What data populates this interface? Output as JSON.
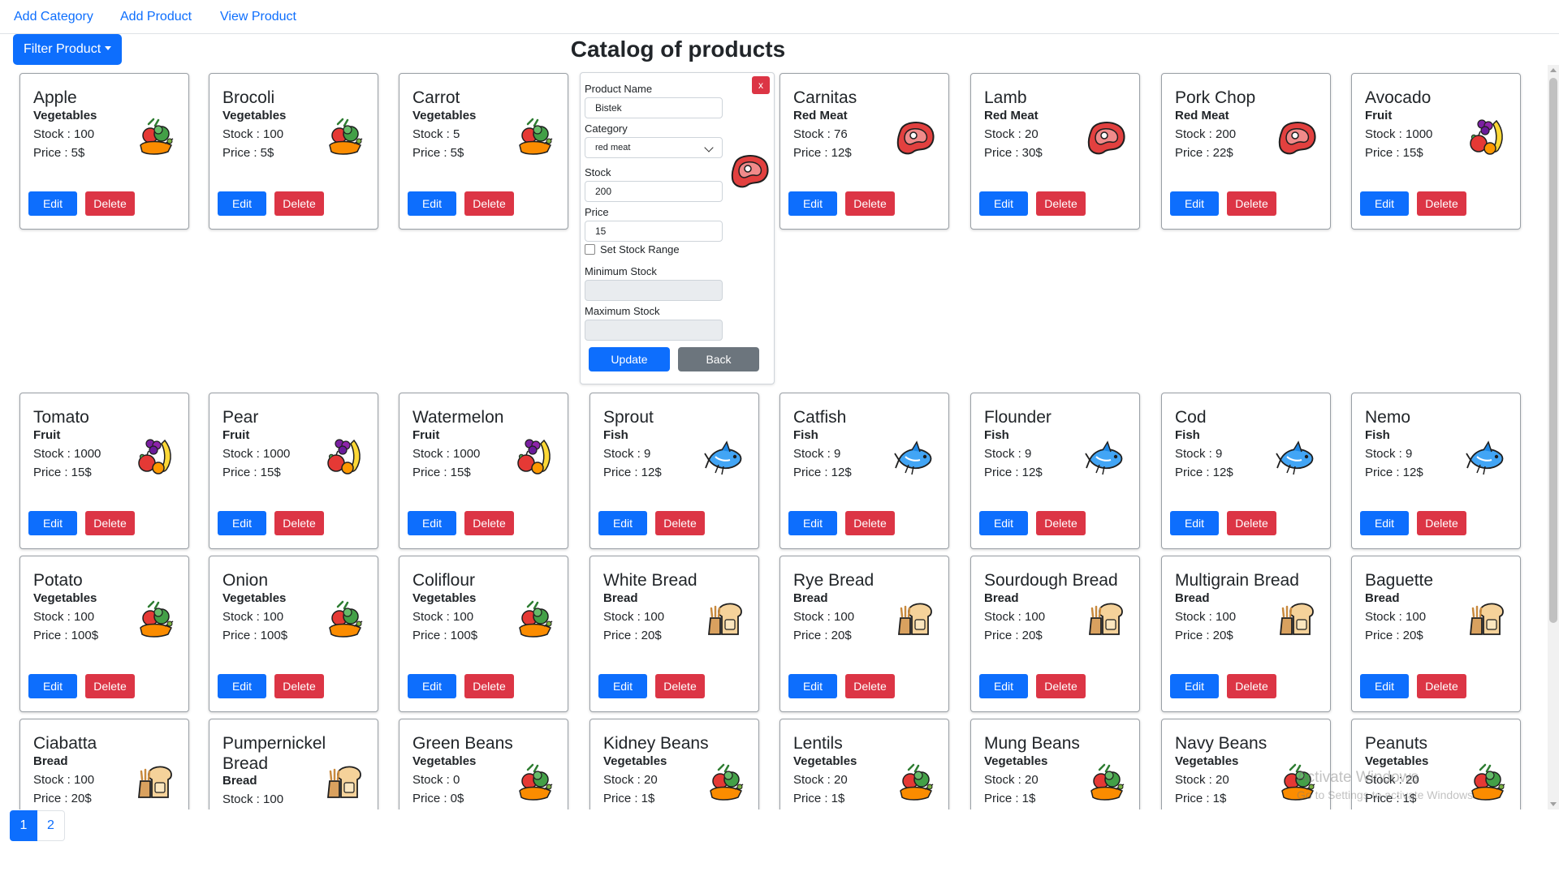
{
  "nav": {
    "links": [
      "Add Category",
      "Add Product",
      "View Product"
    ]
  },
  "filter_button": "Filter Product",
  "page_title": "Catalog of products",
  "form": {
    "close": "x",
    "product_name_label": "Product Name",
    "product_name_value": "Bistek",
    "category_label": "Category",
    "category_value": "red meat",
    "stock_label": "Stock",
    "stock_value": "200",
    "price_label": "Price",
    "price_value": "15",
    "stock_range_label": "Set Stock Range",
    "min_stock_label": "Minimum Stock",
    "max_stock_label": "Maximum Stock",
    "update_button": "Update",
    "back_button": "Back"
  },
  "card_buttons": {
    "edit": "Edit",
    "delete": "Delete"
  },
  "products": [
    {
      "name": "Apple",
      "category": "Vegetables",
      "stock": "Stock : 100",
      "price": "Price : 5$",
      "icon": "vegetables-icon"
    },
    {
      "name": "Brocoli",
      "category": "Vegetables",
      "stock": "Stock : 100",
      "price": "Price : 5$",
      "icon": "vegetables-icon"
    },
    {
      "name": "Carrot",
      "category": "Vegetables",
      "stock": "Stock : 5",
      "price": "Price : 5$",
      "icon": "vegetables-icon"
    },
    {
      "name": "Carnitas",
      "category": "Red Meat",
      "stock": "Stock : 76",
      "price": "Price : 12$",
      "icon": "steak-icon"
    },
    {
      "name": "Lamb",
      "category": "Red Meat",
      "stock": "Stock : 20",
      "price": "Price : 30$",
      "icon": "steak-icon"
    },
    {
      "name": "Pork Chop",
      "category": "Red Meat",
      "stock": "Stock : 200",
      "price": "Price : 22$",
      "icon": "steak-icon"
    },
    {
      "name": "Avocado",
      "category": "Fruit",
      "stock": "Stock : 1000",
      "price": "Price : 15$",
      "icon": "fruit-icon"
    },
    {
      "name": "Tomato",
      "category": "Fruit",
      "stock": "Stock : 1000",
      "price": "Price : 15$",
      "icon": "fruit-icon"
    },
    {
      "name": "Pear",
      "category": "Fruit",
      "stock": "Stock : 1000",
      "price": "Price : 15$",
      "icon": "fruit-icon"
    },
    {
      "name": "Watermelon",
      "category": "Fruit",
      "stock": "Stock : 1000",
      "price": "Price : 15$",
      "icon": "fruit-icon"
    },
    {
      "name": "Sprout",
      "category": "Fish",
      "stock": "Stock : 9",
      "price": "Price : 12$",
      "icon": "fish-icon"
    },
    {
      "name": "Catfish",
      "category": "Fish",
      "stock": "Stock : 9",
      "price": "Price : 12$",
      "icon": "fish-icon"
    },
    {
      "name": "Flounder",
      "category": "Fish",
      "stock": "Stock : 9",
      "price": "Price : 12$",
      "icon": "fish-icon"
    },
    {
      "name": "Cod",
      "category": "Fish",
      "stock": "Stock : 9",
      "price": "Price : 12$",
      "icon": "fish-icon"
    },
    {
      "name": "Nemo",
      "category": "Fish",
      "stock": "Stock : 9",
      "price": "Price : 12$",
      "icon": "fish-icon"
    },
    {
      "name": "Potato",
      "category": "Vegetables",
      "stock": "Stock : 100",
      "price": "Price : 100$",
      "icon": "vegetables-icon"
    },
    {
      "name": "Onion",
      "category": "Vegetables",
      "stock": "Stock : 100",
      "price": "Price : 100$",
      "icon": "vegetables-icon"
    },
    {
      "name": "Coliflour",
      "category": "Vegetables",
      "stock": "Stock : 100",
      "price": "Price : 100$",
      "icon": "vegetables-icon"
    },
    {
      "name": "White Bread",
      "category": "Bread",
      "stock": "Stock : 100",
      "price": "Price : 20$",
      "icon": "bread-icon"
    },
    {
      "name": "Rye Bread",
      "category": "Bread",
      "stock": "Stock : 100",
      "price": "Price : 20$",
      "icon": "bread-icon"
    },
    {
      "name": "Sourdough Bread",
      "category": "Bread",
      "stock": "Stock : 100",
      "price": "Price : 20$",
      "icon": "bread-icon"
    },
    {
      "name": "Multigrain Bread",
      "category": "Bread",
      "stock": "Stock : 100",
      "price": "Price : 20$",
      "icon": "bread-icon"
    },
    {
      "name": "Baguette",
      "category": "Bread",
      "stock": "Stock : 100",
      "price": "Price : 20$",
      "icon": "bread-icon"
    },
    {
      "name": "Ciabatta",
      "category": "Bread",
      "stock": "Stock : 100",
      "price": "Price : 20$",
      "icon": "bread-icon"
    },
    {
      "name": "Pumpernickel Bread",
      "category": "Bread",
      "stock": "Stock : 100",
      "price": "",
      "icon": "bread-icon"
    },
    {
      "name": "Green Beans",
      "category": "Vegetables",
      "stock": "Stock : 0",
      "price": "Price : 0$",
      "icon": "vegetables-icon"
    },
    {
      "name": "Kidney Beans",
      "category": "Vegetables",
      "stock": "Stock : 20",
      "price": "Price : 1$",
      "icon": "vegetables-icon"
    },
    {
      "name": "Lentils",
      "category": "Vegetables",
      "stock": "Stock : 20",
      "price": "Price : 1$",
      "icon": "vegetables-icon"
    },
    {
      "name": "Mung Beans",
      "category": "Vegetables",
      "stock": "Stock : 20",
      "price": "Price : 1$",
      "icon": "vegetables-icon"
    },
    {
      "name": "Navy Beans",
      "category": "Vegetables",
      "stock": "Stock : 20",
      "price": "Price : 1$",
      "icon": "vegetables-icon"
    },
    {
      "name": "Peanuts",
      "category": "Vegetables",
      "stock": "Stock : 20",
      "price": "Price : 1$",
      "icon": "vegetables-icon"
    }
  ],
  "pagination": [
    "1",
    "2"
  ],
  "watermark": {
    "line1": "Activate Windows",
    "line2": "Go to Settings to activate Windows."
  }
}
